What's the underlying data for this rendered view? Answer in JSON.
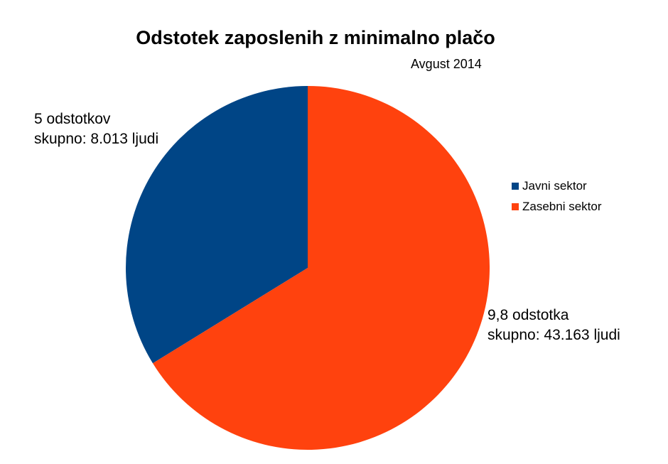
{
  "chart_data": {
    "type": "pie",
    "title": "Odstotek zaposlenih z minimalno plačo",
    "subtitle": "Avgust 2014",
    "legend_position": "right",
    "slices": [
      {
        "name": "Javni sektor",
        "value": 5,
        "label_line1": "5 odstotkov",
        "label_line2": "skupno: 8.013 ljudi",
        "color": "#004586"
      },
      {
        "name": "Zasebni sektor",
        "value": 9.8,
        "label_line1": "9,8 odstotka",
        "label_line2": "skupno: 43.163 ljudi",
        "color": "#ff420e"
      }
    ]
  }
}
